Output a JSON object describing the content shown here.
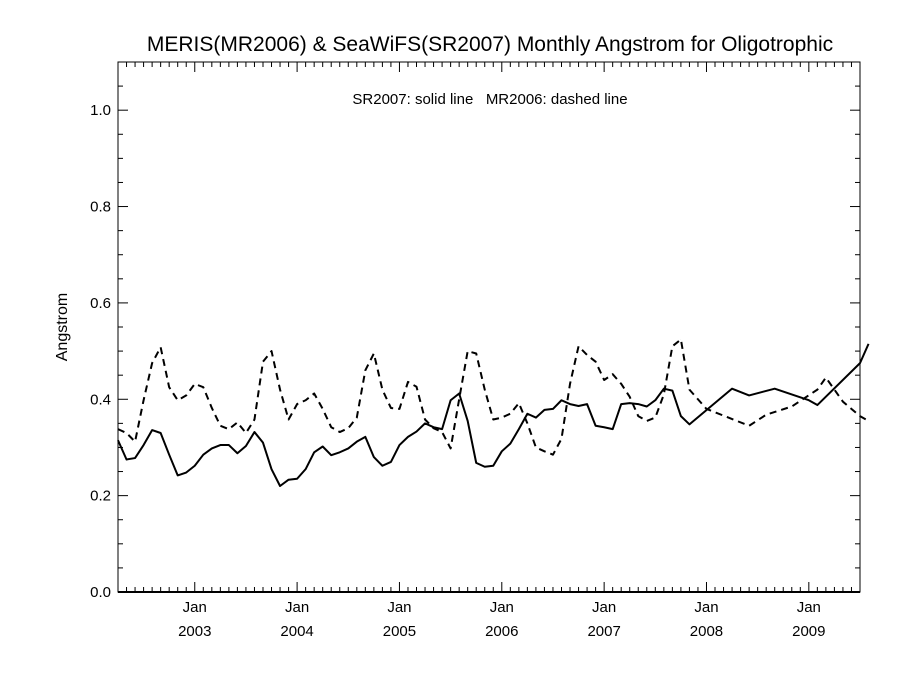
{
  "chart_data": {
    "type": "line",
    "title": "MERIS(MR2006) & SeaWiFS(SR2007) Monthly Angstrom for Oligotrophic",
    "xlabel": "",
    "ylabel": "Angstrom",
    "annotation": "SR2007: solid line   MR2006: dashed line",
    "ylim": [
      0.0,
      1.1
    ],
    "xlim": [
      "2002-04",
      "2009-07"
    ],
    "y_ticks": [
      "0.0",
      "0.2",
      "0.4",
      "0.6",
      "0.8",
      "1.0"
    ],
    "x_ticks": [
      {
        "month": "Jan",
        "year": "2003"
      },
      {
        "month": "Jan",
        "year": "2004"
      },
      {
        "month": "Jan",
        "year": "2005"
      },
      {
        "month": "Jan",
        "year": "2006"
      },
      {
        "month": "Jan",
        "year": "2007"
      },
      {
        "month": "Jan",
        "year": "2008"
      },
      {
        "month": "Jan",
        "year": "2009"
      }
    ],
    "grid": false,
    "series": [
      {
        "name": "SR2007",
        "style": "solid",
        "color": "#000000",
        "points": [
          [
            "2002-04",
            0.315
          ],
          [
            "2002-05",
            0.275
          ],
          [
            "2002-06",
            0.278
          ],
          [
            "2002-07",
            0.305
          ],
          [
            "2002-08",
            0.336
          ],
          [
            "2002-09",
            0.33
          ],
          [
            "2002-10",
            0.285
          ],
          [
            "2002-11",
            0.242
          ],
          [
            "2002-12",
            0.248
          ],
          [
            "2003-01",
            0.262
          ],
          [
            "2003-02",
            0.285
          ],
          [
            "2003-03",
            0.298
          ],
          [
            "2003-04",
            0.305
          ],
          [
            "2003-05",
            0.305
          ],
          [
            "2003-06",
            0.288
          ],
          [
            "2003-07",
            0.303
          ],
          [
            "2003-08",
            0.332
          ],
          [
            "2003-09",
            0.31
          ],
          [
            "2003-10",
            0.255
          ],
          [
            "2003-11",
            0.22
          ],
          [
            "2003-12",
            0.233
          ],
          [
            "2004-01",
            0.235
          ],
          [
            "2004-02",
            0.255
          ],
          [
            "2004-03",
            0.29
          ],
          [
            "2004-04",
            0.302
          ],
          [
            "2004-05",
            0.284
          ],
          [
            "2004-06",
            0.29
          ],
          [
            "2004-07",
            0.298
          ],
          [
            "2004-08",
            0.312
          ],
          [
            "2004-09",
            0.322
          ],
          [
            "2004-10",
            0.28
          ],
          [
            "2004-11",
            0.262
          ],
          [
            "2004-12",
            0.27
          ],
          [
            "2005-01",
            0.305
          ],
          [
            "2005-02",
            0.322
          ],
          [
            "2005-03",
            0.333
          ],
          [
            "2005-04",
            0.35
          ],
          [
            "2005-05",
            0.342
          ],
          [
            "2005-06",
            0.338
          ],
          [
            "2005-07",
            0.398
          ],
          [
            "2005-08",
            0.412
          ],
          [
            "2005-09",
            0.355
          ],
          [
            "2005-10",
            0.268
          ],
          [
            "2005-11",
            0.26
          ],
          [
            "2005-12",
            0.262
          ],
          [
            "2006-01",
            0.292
          ],
          [
            "2006-02",
            0.308
          ],
          [
            "2006-03",
            0.338
          ],
          [
            "2006-04",
            0.37
          ],
          [
            "2006-05",
            0.362
          ],
          [
            "2006-06",
            0.378
          ],
          [
            "2006-07",
            0.38
          ],
          [
            "2006-08",
            0.398
          ],
          [
            "2006-09",
            0.39
          ],
          [
            "2006-10",
            0.386
          ],
          [
            "2006-11",
            0.39
          ],
          [
            "2006-12",
            0.345
          ],
          [
            "2007-01",
            0.342
          ],
          [
            "2007-02",
            0.338
          ],
          [
            "2007-03",
            0.39
          ],
          [
            "2007-04",
            0.392
          ],
          [
            "2007-05",
            0.39
          ],
          [
            "2007-06",
            0.385
          ],
          [
            "2007-07",
            0.398
          ],
          [
            "2007-08",
            0.422
          ],
          [
            "2007-09",
            0.418
          ],
          [
            "2007-10",
            0.365
          ],
          [
            "2007-11",
            0.348
          ],
          [
            "2008-04",
            0.422
          ],
          [
            "2008-06",
            0.408
          ],
          [
            "2008-09",
            0.422
          ],
          [
            "2009-01",
            0.398
          ],
          [
            "2009-02",
            0.388
          ],
          [
            "2009-07",
            0.475
          ],
          [
            "2009-08",
            0.515
          ]
        ]
      },
      {
        "name": "MR2006",
        "style": "dashed",
        "color": "#000000",
        "points": [
          [
            "2002-04",
            0.338
          ],
          [
            "2002-05",
            0.33
          ],
          [
            "2002-06",
            0.312
          ],
          [
            "2002-07",
            0.398
          ],
          [
            "2002-08",
            0.475
          ],
          [
            "2002-09",
            0.508
          ],
          [
            "2002-10",
            0.425
          ],
          [
            "2002-11",
            0.398
          ],
          [
            "2002-12",
            0.408
          ],
          [
            "2003-01",
            0.432
          ],
          [
            "2003-02",
            0.425
          ],
          [
            "2003-03",
            0.382
          ],
          [
            "2003-04",
            0.345
          ],
          [
            "2003-05",
            0.338
          ],
          [
            "2003-06",
            0.352
          ],
          [
            "2003-07",
            0.33
          ],
          [
            "2003-08",
            0.358
          ],
          [
            "2003-09",
            0.478
          ],
          [
            "2003-10",
            0.5
          ],
          [
            "2003-11",
            0.42
          ],
          [
            "2003-12",
            0.358
          ],
          [
            "2004-01",
            0.39
          ],
          [
            "2004-02",
            0.398
          ],
          [
            "2004-03",
            0.412
          ],
          [
            "2004-04",
            0.38
          ],
          [
            "2004-05",
            0.342
          ],
          [
            "2004-06",
            0.332
          ],
          [
            "2004-07",
            0.34
          ],
          [
            "2004-08",
            0.362
          ],
          [
            "2004-09",
            0.46
          ],
          [
            "2004-10",
            0.495
          ],
          [
            "2004-11",
            0.42
          ],
          [
            "2004-12",
            0.382
          ],
          [
            "2005-01",
            0.38
          ],
          [
            "2005-02",
            0.436
          ],
          [
            "2005-03",
            0.426
          ],
          [
            "2005-04",
            0.358
          ],
          [
            "2005-05",
            0.34
          ],
          [
            "2005-06",
            0.332
          ],
          [
            "2005-07",
            0.298
          ],
          [
            "2005-08",
            0.4
          ],
          [
            "2005-09",
            0.5
          ],
          [
            "2005-10",
            0.495
          ],
          [
            "2005-11",
            0.42
          ],
          [
            "2005-12",
            0.358
          ],
          [
            "2006-01",
            0.362
          ],
          [
            "2006-02",
            0.37
          ],
          [
            "2006-03",
            0.392
          ],
          [
            "2006-04",
            0.35
          ],
          [
            "2006-05",
            0.3
          ],
          [
            "2006-06",
            0.292
          ],
          [
            "2006-07",
            0.285
          ],
          [
            "2006-08",
            0.318
          ],
          [
            "2006-09",
            0.432
          ],
          [
            "2006-10",
            0.51
          ],
          [
            "2006-11",
            0.492
          ],
          [
            "2006-12",
            0.478
          ],
          [
            "2007-01",
            0.44
          ],
          [
            "2007-02",
            0.452
          ],
          [
            "2007-03",
            0.432
          ],
          [
            "2007-04",
            0.405
          ],
          [
            "2007-05",
            0.365
          ],
          [
            "2007-06",
            0.355
          ],
          [
            "2007-07",
            0.362
          ],
          [
            "2007-08",
            0.41
          ],
          [
            "2007-09",
            0.51
          ],
          [
            "2007-10",
            0.524
          ],
          [
            "2007-11",
            0.42
          ],
          [
            "2008-01",
            0.38
          ],
          [
            "2008-06",
            0.345
          ],
          [
            "2008-08",
            0.368
          ],
          [
            "2008-11",
            0.385
          ],
          [
            "2009-02",
            0.42
          ],
          [
            "2009-03",
            0.445
          ],
          [
            "2009-05",
            0.395
          ],
          [
            "2009-07",
            0.365
          ],
          [
            "2009-08",
            0.355
          ]
        ]
      }
    ]
  }
}
